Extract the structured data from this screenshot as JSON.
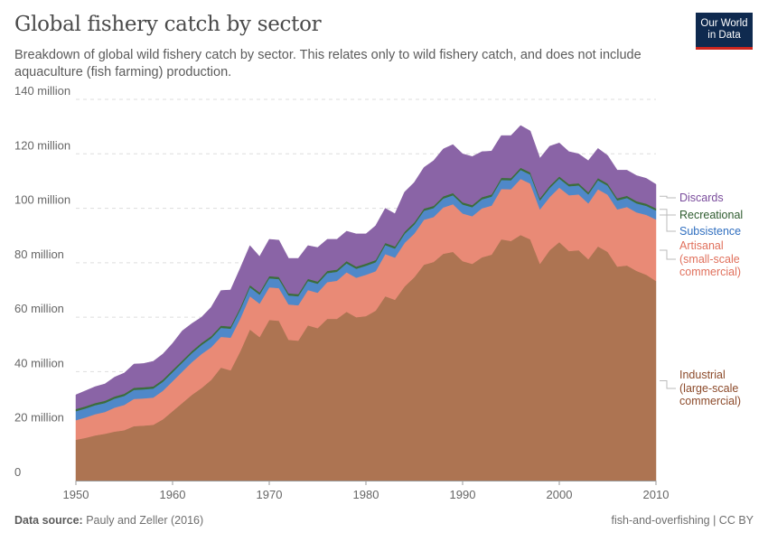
{
  "header": {
    "title": "Global fishery catch by sector",
    "subtitle": "Breakdown of global wild fishery catch by sector. This relates only to wild fishery catch, and does not include aquaculture (fish farming) production.",
    "logo_text": "Our World in Data"
  },
  "footer": {
    "source_label": "Data source:",
    "source": "Pauly and Zeller (2016)",
    "license": "fish-and-overfishing | CC BY"
  },
  "chart_data": {
    "type": "area",
    "stacked": true,
    "title": "Global fishery catch by sector",
    "xlabel": "",
    "ylabel": "",
    "xlim": [
      1950,
      2010
    ],
    "ylim": [
      0,
      140000000
    ],
    "grid": true,
    "legend_placement": "right, inline labels",
    "x_ticks": [
      "1950",
      "1960",
      "1970",
      "1980",
      "1990",
      "2000",
      "2010"
    ],
    "y_ticks": [
      "0",
      "20 million",
      "40 million",
      "60 million",
      "80 million",
      "100 million",
      "120 million",
      "140 million"
    ],
    "units": "million tonnes",
    "x": [
      1950,
      1951,
      1952,
      1953,
      1954,
      1955,
      1956,
      1957,
      1958,
      1959,
      1960,
      1961,
      1962,
      1963,
      1964,
      1965,
      1966,
      1967,
      1968,
      1969,
      1970,
      1971,
      1972,
      1973,
      1974,
      1975,
      1976,
      1977,
      1978,
      1979,
      1980,
      1981,
      1982,
      1983,
      1984,
      1985,
      1986,
      1987,
      1988,
      1989,
      1990,
      1991,
      1992,
      1993,
      1994,
      1995,
      1996,
      1997,
      1998,
      1999,
      2000,
      2001,
      2002,
      2003,
      2004,
      2005,
      2006,
      2007,
      2008,
      2009,
      2010
    ],
    "series": [
      {
        "name": "Industrial (large-scale commercial)",
        "label_lines": [
          "Industrial",
          "(large-scale",
          "commercial)"
        ],
        "color": "#ad7452",
        "label_color": "#8c4a2a",
        "values": [
          15,
          15.7,
          16.6,
          17.2,
          18,
          18.5,
          20,
          20.2,
          20.5,
          22.5,
          25.5,
          28.5,
          31.5,
          34,
          37,
          41.5,
          40.5,
          47.5,
          55.5,
          52.7,
          59,
          58.7,
          51.7,
          51.4,
          57,
          56,
          59.4,
          59.4,
          62,
          60,
          60.4,
          62.4,
          67.7,
          66.4,
          71.3,
          74.7,
          79.3,
          80.3,
          83.3,
          84,
          80.6,
          79.6,
          82,
          83,
          88.6,
          88,
          90.2,
          88.6,
          79.6,
          84.6,
          87.6,
          84.3,
          84.6,
          81.3,
          86,
          84,
          78.6,
          79,
          77,
          75.6,
          73.3
        ]
      },
      {
        "name": "Artisanal (small-scale commercial)",
        "label_lines": [
          "Artisanal",
          "(small-scale",
          "commercial)"
        ],
        "color": "#e98a76",
        "label_color": "#e0705c",
        "values": [
          7.2,
          7.5,
          7.8,
          8,
          8.8,
          9.3,
          10,
          10,
          10,
          10.5,
          11,
          11.5,
          12,
          12.5,
          12,
          11.3,
          12,
          12,
          12.2,
          12.3,
          12,
          12,
          13,
          13,
          13,
          13,
          13.5,
          14,
          14.5,
          14.5,
          15.2,
          14.5,
          15.5,
          15.5,
          16,
          16,
          16.5,
          16.5,
          17,
          17.5,
          17.5,
          17.5,
          18,
          18,
          18.5,
          19,
          20.6,
          20.5,
          20,
          19.5,
          20,
          20.5,
          20.5,
          20.5,
          21,
          21,
          21,
          21.5,
          21.5,
          22,
          22.6
        ]
      },
      {
        "name": "Subsistence",
        "label_lines": [
          "Subsistence"
        ],
        "color": "#4f88c9",
        "label_color": "#2f6ebf",
        "values": [
          3.3,
          3.3,
          3.3,
          3.3,
          3.3,
          3.3,
          3.3,
          3.3,
          3.3,
          3.3,
          3.3,
          3.3,
          3.3,
          3.3,
          3.3,
          3.3,
          3.3,
          3.3,
          3.3,
          3.3,
          3.3,
          3.3,
          3.3,
          3.3,
          3.3,
          3.3,
          3.3,
          3.3,
          3.3,
          3.3,
          3.3,
          3.3,
          3.3,
          3.3,
          3.3,
          3.3,
          3.3,
          3.3,
          3.3,
          3.3,
          3.3,
          3.3,
          3.3,
          3.3,
          3.3,
          3.3,
          3.3,
          3.3,
          3.3,
          3.3,
          3.3,
          3.3,
          3.3,
          3.3,
          3.3,
          3.3,
          3.3,
          3.3,
          3.3,
          3.3,
          3.3
        ]
      },
      {
        "name": "Recreational",
        "label_lines": [
          "Recreational"
        ],
        "color": "#3c6d3c",
        "label_color": "#2e5b2e",
        "values": [
          0.8,
          0.8,
          0.8,
          0.8,
          0.8,
          0.8,
          0.8,
          0.8,
          0.8,
          0.8,
          0.8,
          0.8,
          0.8,
          0.8,
          0.8,
          0.8,
          0.8,
          0.8,
          0.8,
          0.8,
          0.8,
          0.8,
          0.8,
          0.8,
          0.8,
          0.8,
          0.8,
          0.8,
          0.8,
          0.8,
          0.8,
          0.8,
          0.8,
          0.8,
          0.8,
          0.8,
          0.8,
          0.8,
          0.8,
          0.8,
          0.8,
          0.8,
          0.8,
          0.8,
          0.8,
          0.8,
          0.8,
          0.8,
          0.8,
          0.8,
          0.8,
          0.8,
          0.8,
          0.8,
          0.8,
          0.8,
          0.8,
          0.8,
          0.8,
          0.8,
          0.8
        ]
      },
      {
        "name": "Discards",
        "label_lines": [
          "Discards"
        ],
        "color": "#8a64a6",
        "label_color": "#7a4c9c",
        "values": [
          5.2,
          5.7,
          6,
          6.2,
          7.1,
          7.6,
          8.7,
          8.7,
          9.2,
          9.4,
          9.8,
          10.9,
          10.1,
          9.4,
          10.6,
          12.9,
          13.4,
          14.4,
          14.5,
          13.2,
          13.5,
          13.5,
          12.8,
          13.1,
          12.2,
          12.5,
          11.6,
          11.1,
          11,
          12,
          10.9,
          12.6,
          12.7,
          12,
          14.6,
          14.7,
          15.1,
          16.6,
          17.4,
          17.8,
          17.8,
          17.8,
          16.7,
          15.9,
          15.5,
          15.6,
          15.5,
          15.2,
          14.7,
          14.6,
          12.3,
          11.9,
          10.8,
          11.6,
          10.9,
          10.3,
          10.3,
          9.4,
          9.4,
          9.3,
          8.8
        ]
      }
    ]
  }
}
